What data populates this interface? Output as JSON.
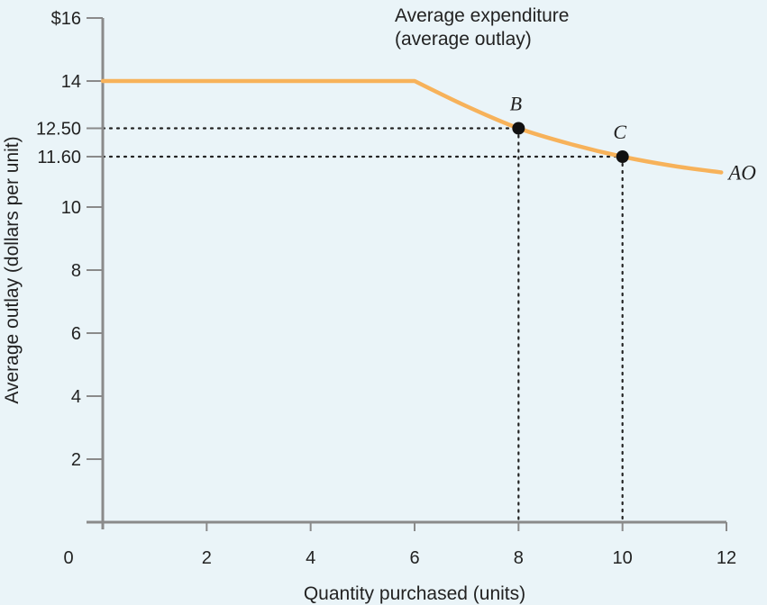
{
  "chart_data": {
    "type": "line",
    "xlabel": "Quantity purchased (units)",
    "ylabel": "Average outlay (dollars per unit)",
    "xlim": [
      0,
      12
    ],
    "ylim": [
      0,
      16
    ],
    "x_ticks": [
      {
        "value": 0,
        "label": "0"
      },
      {
        "value": 2,
        "label": "2"
      },
      {
        "value": 4,
        "label": "4"
      },
      {
        "value": 6,
        "label": "6"
      },
      {
        "value": 8,
        "label": "8"
      },
      {
        "value": 10,
        "label": "10"
      },
      {
        "value": 12,
        "label": "12"
      }
    ],
    "y_ticks": [
      {
        "value": 2,
        "label": "2"
      },
      {
        "value": 4,
        "label": "4"
      },
      {
        "value": 6,
        "label": "6"
      },
      {
        "value": 8,
        "label": "8"
      },
      {
        "value": 10,
        "label": "10"
      },
      {
        "value": 11.6,
        "label": "11.60"
      },
      {
        "value": 12.5,
        "label": "12.50"
      },
      {
        "value": 14,
        "label": "14"
      },
      {
        "value": 16,
        "label": "$16"
      }
    ],
    "series": [
      {
        "name": "AO",
        "color": "#f7b25a",
        "x": [
          0,
          6,
          7,
          8,
          9,
          10,
          11,
          11.9
        ],
        "y": [
          14,
          14,
          13.2,
          12.5,
          12.0,
          11.6,
          11.3,
          11.1
        ]
      }
    ],
    "points": [
      {
        "label": "B",
        "x": 8,
        "y": 12.5
      },
      {
        "label": "C",
        "x": 10,
        "y": 11.6
      }
    ],
    "annotation": [
      "Average expenditure",
      "(average outlay)"
    ],
    "grid": false,
    "colors": {
      "axis": "#8a8a8a",
      "curve": "#f7b25a",
      "background": "#eaf4f8",
      "point": "#111111"
    }
  }
}
